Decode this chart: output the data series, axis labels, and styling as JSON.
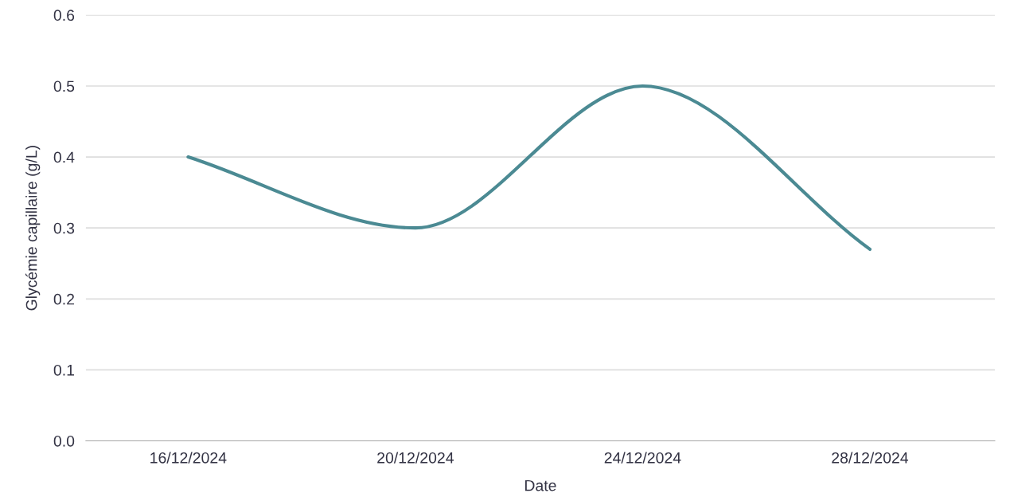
{
  "chart_data": {
    "type": "line",
    "xlabel": "Date",
    "ylabel": "Glycémie capillaire (g/L)",
    "categories": [
      "16/12/2024",
      "20/12/2024",
      "24/12/2024",
      "28/12/2024"
    ],
    "series": [
      {
        "color": "#4b8a93",
        "values": [
          0.4,
          0.3,
          0.5,
          0.27
        ]
      }
    ],
    "ylim": [
      0.0,
      0.6
    ],
    "yticks": [
      {
        "value": 0,
        "label": "0.0"
      },
      0.1,
      0.2,
      0.3,
      0.4,
      0.5,
      0.6
    ],
    "grid": "y",
    "marker": "none",
    "line_style": "solid"
  }
}
